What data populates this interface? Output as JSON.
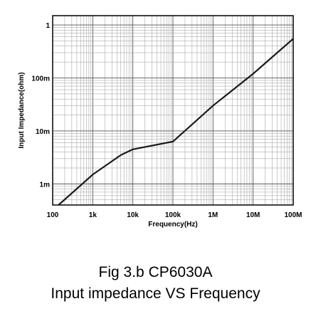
{
  "chart_data": {
    "type": "line",
    "x_scale": "log",
    "y_scale": "log",
    "xlim": [
      100,
      100000000
    ],
    "ylim": [
      0.0004,
      1.5
    ],
    "x_ticks": [
      {
        "value": 100,
        "label": "100"
      },
      {
        "value": 1000,
        "label": "1k"
      },
      {
        "value": 10000,
        "label": "10k"
      },
      {
        "value": 100000,
        "label": "100k"
      },
      {
        "value": 1000000,
        "label": "1M"
      },
      {
        "value": 10000000,
        "label": "10M"
      },
      {
        "value": 100000000,
        "label": "100M"
      }
    ],
    "y_ticks": [
      {
        "value": 0.001,
        "label": "1m"
      },
      {
        "value": 0.01,
        "label": "10m"
      },
      {
        "value": 0.1,
        "label": "100m"
      },
      {
        "value": 1,
        "label": "1"
      }
    ],
    "xlabel": "Frequency(Hz)",
    "ylabel": "Input Impedance(ohm)",
    "grid": true,
    "series": [
      {
        "color": "#1a1a1a",
        "points": [
          [
            140,
            0.0004
          ],
          [
            1000,
            0.0015
          ],
          [
            5000,
            0.0035
          ],
          [
            10000,
            0.0045
          ],
          [
            100000,
            0.0063
          ],
          [
            1000000,
            0.03
          ],
          [
            10000000,
            0.12
          ],
          [
            100000000,
            0.55
          ]
        ]
      }
    ]
  },
  "caption": {
    "line1": "Fig 3.b CP6030A",
    "line2": "Input impedance VS Frequency"
  }
}
